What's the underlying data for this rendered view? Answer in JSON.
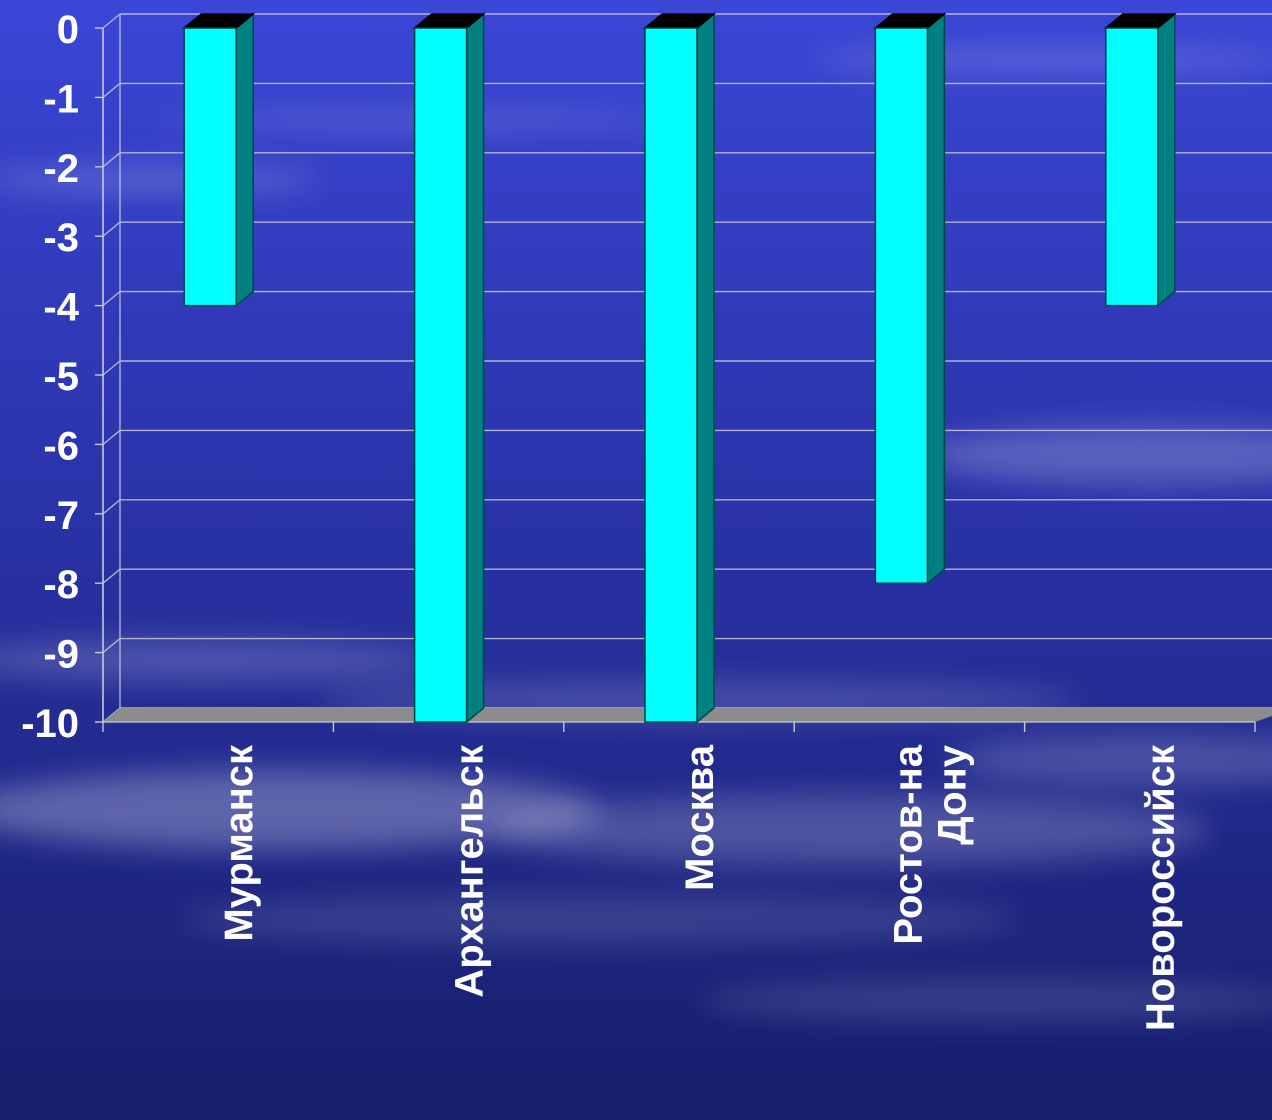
{
  "chart_data": {
    "type": "bar",
    "title": "",
    "xlabel": "",
    "ylabel": "",
    "categories": [
      "Мурманск",
      "Архангельск",
      "Москва",
      "Ростов-на Дону",
      "Новороссийск"
    ],
    "category_lines": [
      [
        "Мурманск"
      ],
      [
        "Архангельск"
      ],
      [
        "Москва"
      ],
      [
        "Ростов-на",
        "Дону"
      ],
      [
        "Новороссийск"
      ]
    ],
    "values": [
      -4,
      -10,
      -10,
      -8,
      -4
    ],
    "ylim": [
      -10,
      0
    ],
    "yticks": [
      "0",
      "-1",
      "-2",
      "-3",
      "-4",
      "-5",
      "-6",
      "-7",
      "-8",
      "-9",
      "-10"
    ],
    "grid": true,
    "legend": "none",
    "bar_style": "3d",
    "colors": {
      "bar_front": "#00ffff",
      "bar_side": "#008080",
      "bar_top": "#000000",
      "gridline": "#c8c8d8",
      "floor": "#8c8c8c",
      "text": "#ffffff",
      "background_top": "#3a46d6",
      "background_bottom": "#171e6b"
    }
  }
}
